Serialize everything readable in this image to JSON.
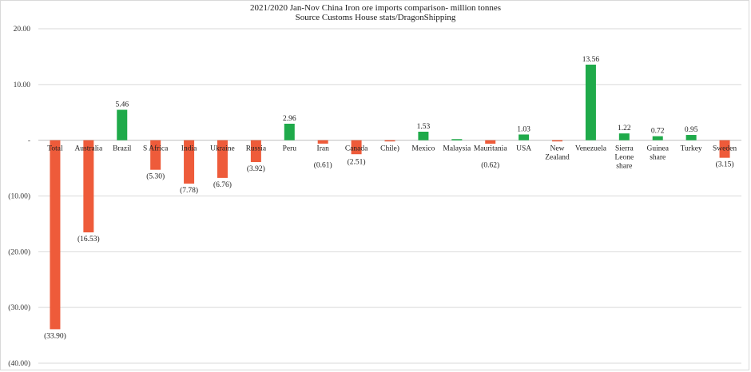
{
  "chart_data": {
    "type": "bar",
    "title": "2021/2020 Jan-Nov China Iron ore imports comparison- million tonnes",
    "subtitle": "Source Customs House stats/DragonShipping",
    "categories": [
      "Total",
      "Australia",
      "Brazil",
      "S Africa",
      "India",
      "Ukraine",
      "Russia",
      "Peru",
      "Iran",
      "Canada",
      "Chile)",
      "Mexico",
      "Malaysia",
      "Mauritania",
      "USA",
      "New Zealand",
      "Venezuela",
      "Sierra Leone share",
      "Guinea share",
      "Turkey",
      "Sweden"
    ],
    "values": [
      -33.9,
      -16.53,
      5.46,
      -5.3,
      -7.78,
      -6.76,
      -3.92,
      2.96,
      -0.61,
      -2.51,
      -0.15,
      1.53,
      0.2,
      -0.62,
      1.03,
      -0.15,
      13.56,
      1.22,
      0.72,
      0.95,
      -3.15
    ],
    "data_labels": [
      "(33.90)",
      "(16.53)",
      "5.46",
      "(5.30)",
      "(7.78)",
      "(6.76)",
      "(3.92)",
      "2.96",
      "(0.61)",
      "(2.51)",
      "",
      "1.53",
      "",
      "(0.62)",
      "1.03",
      "",
      "13.56",
      "1.22",
      "0.72",
      "0.95",
      "(3.15)"
    ],
    "ylim": [
      -40,
      20
    ],
    "yticks": [
      20,
      10,
      0,
      -10,
      -20,
      -30,
      -40
    ],
    "ytick_labels": [
      "20.00",
      "10.00",
      "-",
      "(10.00)",
      "(20.00)",
      "(30.00)",
      "(40.00)"
    ],
    "grid": true,
    "xlabel": "",
    "ylabel": "",
    "colors": {
      "positive": "#1faa4a",
      "negative": "#ee5b3a",
      "grid": "#d9d9d9",
      "axis": "#bfbfbf"
    }
  }
}
